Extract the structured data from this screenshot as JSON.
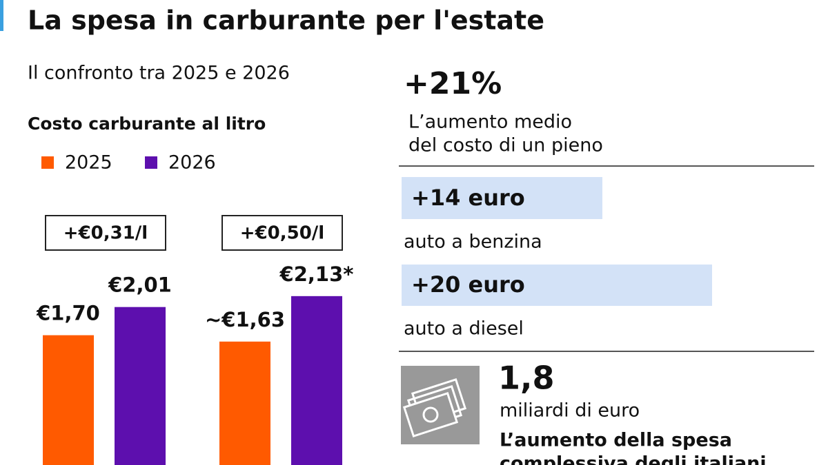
{
  "header": {
    "title": "La spesa in carburante per l'estate",
    "subtitle": "Il confronto tra 2025 e 2026"
  },
  "chart_data": {
    "type": "bar",
    "title": "Costo carburante al litro",
    "categories": [
      null,
      null
    ],
    "series": [
      {
        "name": "2025",
        "color": "#ff5a00",
        "values": [
          1.7,
          1.63
        ],
        "value_labels": [
          "€1,70",
          "~€1,63"
        ]
      },
      {
        "name": "2026",
        "color": "#5d0fae",
        "values": [
          2.01,
          2.13
        ],
        "value_labels": [
          "€2,01",
          "€2,13*"
        ]
      }
    ],
    "annotations": [
      "+€0,31/l",
      "+€0,50/l"
    ]
  },
  "summary": {
    "headline": "+21%",
    "headline_text": [
      "L’aumento medio",
      "del costo di un pieno"
    ],
    "items": [
      {
        "value": "+14 euro",
        "label": "auto a benzina"
      },
      {
        "value": "+20 euro",
        "label": "auto a diesel"
      }
    ],
    "total": {
      "value": "1,8",
      "unit": "miliardi di euro",
      "text": [
        "L’aumento della spesa",
        "complessiva degli italiani"
      ]
    }
  }
}
